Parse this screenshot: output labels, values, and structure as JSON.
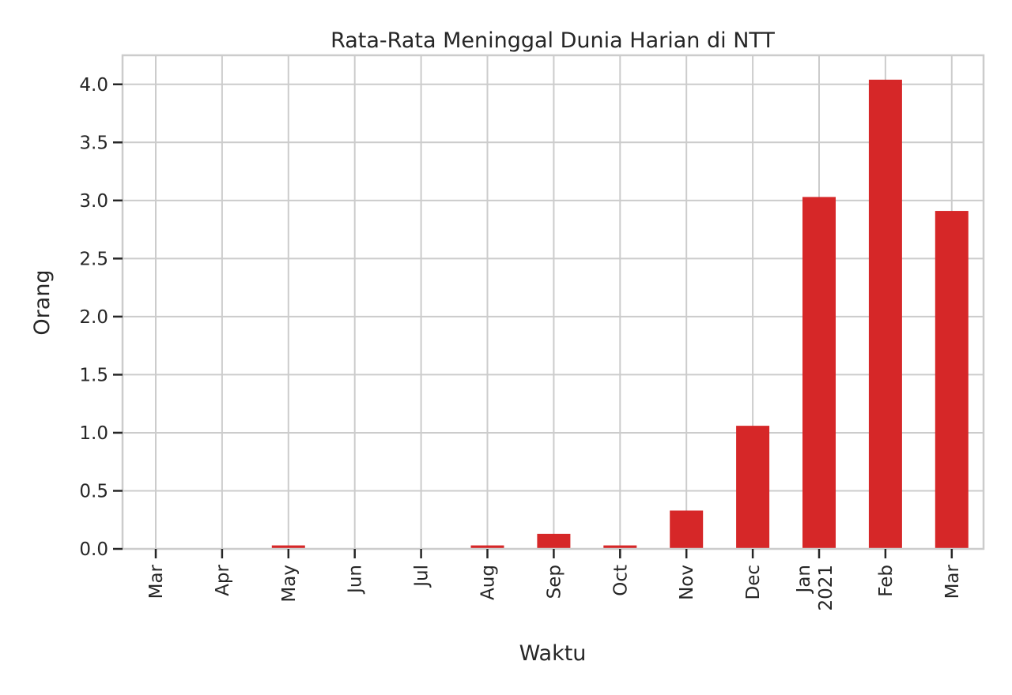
{
  "chart_data": {
    "type": "bar",
    "title": "Rata-Rata Meninggal Dunia Harian di NTT",
    "xlabel": "Waktu",
    "ylabel": "Orang",
    "categories": [
      {
        "label": "Mar",
        "sublabel": ""
      },
      {
        "label": "Apr",
        "sublabel": ""
      },
      {
        "label": "May",
        "sublabel": ""
      },
      {
        "label": "Jun",
        "sublabel": ""
      },
      {
        "label": "Jul",
        "sublabel": ""
      },
      {
        "label": "Aug",
        "sublabel": ""
      },
      {
        "label": "Sep",
        "sublabel": ""
      },
      {
        "label": "Oct",
        "sublabel": ""
      },
      {
        "label": "Nov",
        "sublabel": ""
      },
      {
        "label": "Dec",
        "sublabel": ""
      },
      {
        "label": "Jan",
        "sublabel": "2021"
      },
      {
        "label": "Feb",
        "sublabel": ""
      },
      {
        "label": "Mar",
        "sublabel": ""
      }
    ],
    "values": [
      0.0,
      0.0,
      0.03,
      0.0,
      0.0,
      0.03,
      0.13,
      0.03,
      0.33,
      1.06,
      3.03,
      4.04,
      2.91
    ],
    "ylim": [
      0,
      4.25
    ],
    "yticks": [
      "0.0",
      "0.5",
      "1.0",
      "1.5",
      "2.0",
      "2.5",
      "3.0",
      "3.5",
      "4.0"
    ],
    "grid": true,
    "bar_color": "#d62728"
  }
}
